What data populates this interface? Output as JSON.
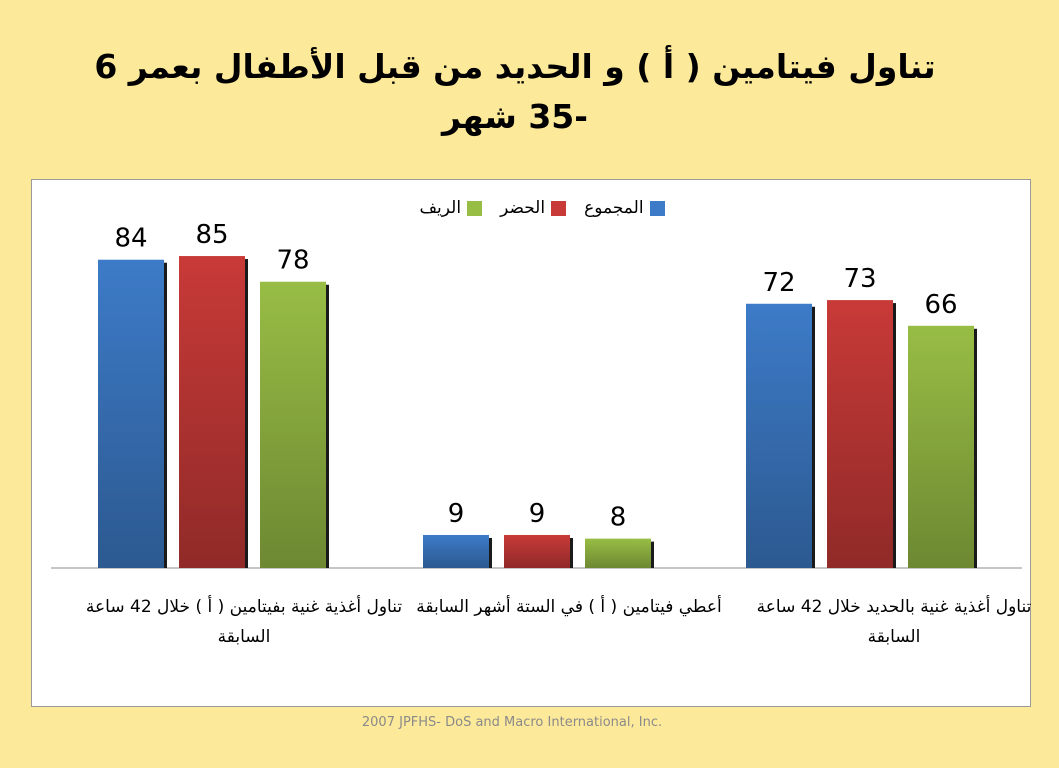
{
  "slide": {
    "title": "تناول فيتامين ( أ ) و الحديد من قبل الأطفال بعمر 6 -35 شهر",
    "footer": "2007 JPFHS- DoS and Macro International, Inc."
  },
  "chart_data": {
    "type": "bar",
    "title": "",
    "xlabel": "",
    "ylabel": "",
    "ylim": [
      0,
      100
    ],
    "grid": false,
    "legend_position": "top",
    "categories": [
      "تناول أغذية غنية بفيتامين ( أ ) خلال 42 ساعة السابقة",
      "أعطي فيتامين ( أ ) في الستة أشهر السابقة",
      "تناول أغذية غنية بالحديد خلال 42 ساعة السابقة"
    ],
    "series": [
      {
        "name": "المجموع",
        "color": "#3d7bc8",
        "values": [
          84,
          9,
          72
        ]
      },
      {
        "name": "الحضر",
        "color": "#c83a38",
        "values": [
          85,
          9,
          73
        ]
      },
      {
        "name": "الريف",
        "color": "#98bd45",
        "values": [
          78,
          8,
          66
        ]
      }
    ]
  }
}
